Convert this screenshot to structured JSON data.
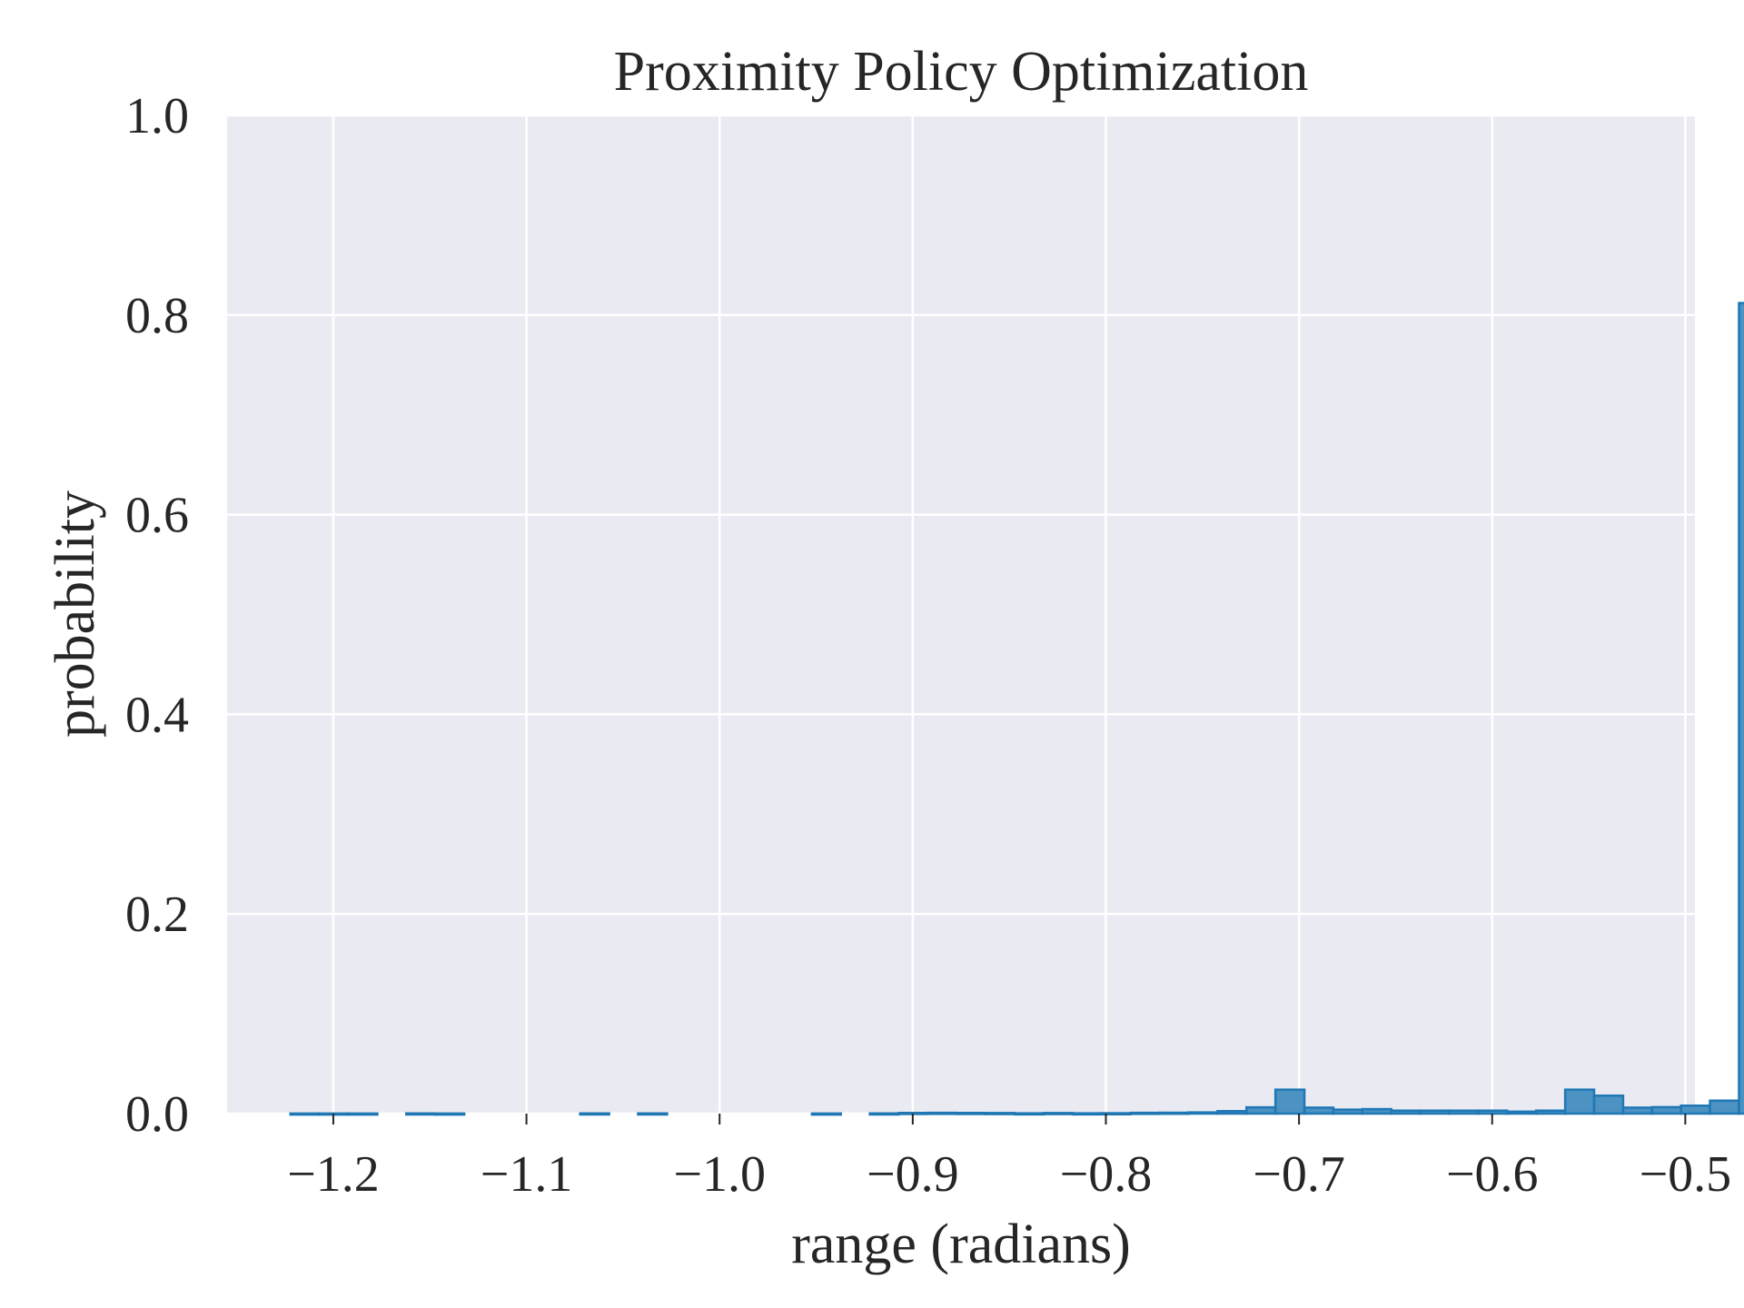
{
  "chart_data": {
    "type": "bar",
    "title": "Proximity Policy Optimization",
    "xlabel": "range (radians)",
    "ylabel": "probability",
    "xlim": [
      -1.255,
      -0.495
    ],
    "ylim": [
      0.0,
      1.0
    ],
    "xticks": [
      -1.2,
      -1.1,
      -1.0,
      -0.9,
      -0.8,
      -0.7,
      -0.6,
      -0.5
    ],
    "xtick_labels": [
      "−1.2",
      "−1.1",
      "−1.0",
      "−0.9",
      "−0.8",
      "−0.7",
      "−0.6",
      "−0.5"
    ],
    "yticks": [
      0.0,
      0.2,
      0.4,
      0.6,
      0.8,
      1.0
    ],
    "ytick_labels": [
      "0.0",
      "0.2",
      "0.4",
      "0.6",
      "0.8",
      "1.0"
    ],
    "grid": true,
    "bin_start": -1.2222,
    "bin_width": 0.015,
    "values": [
      0.0001,
      0.0001,
      0.0001,
      0,
      0.0002,
      0.0001,
      0,
      0,
      0,
      0,
      0.0002,
      0,
      0.0002,
      0,
      0,
      0,
      0,
      0,
      0.0001,
      0,
      0.0002,
      0.0007,
      0.0008,
      0.0007,
      0.0006,
      0.0003,
      0.0006,
      0.0003,
      0.0004,
      0.0008,
      0.0009,
      0.0012,
      0.0025,
      0.0063,
      0.024,
      0.006,
      0.004,
      0.0045,
      0.003,
      0.003,
      0.003,
      0.003,
      0.002,
      0.003,
      0.024,
      0.018,
      0.006,
      0.0065,
      0.008,
      0.013,
      0.812
    ],
    "bar_color": "#4c92c3",
    "edge_color": "#1f77b4",
    "plot_background": "#eaeaf2",
    "grid_color": "#ffffff"
  }
}
